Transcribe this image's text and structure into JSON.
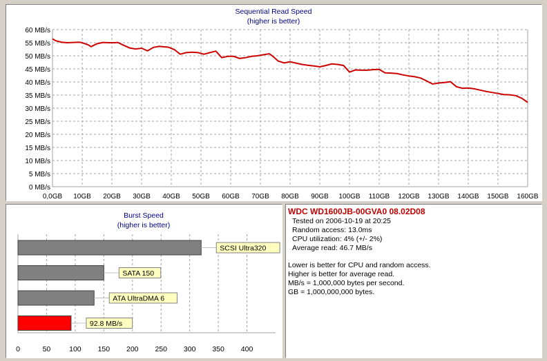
{
  "chart_data": [
    {
      "type": "line",
      "title": "Sequential Read Speed",
      "subtitle": "(higher is better)",
      "xlabel": "",
      "ylabel": "",
      "x_ticks": [
        "0,0GB",
        "10GB",
        "20GB",
        "30GB",
        "40GB",
        "50GB",
        "60GB",
        "70GB",
        "80GB",
        "90GB",
        "100GB",
        "110GB",
        "120GB",
        "130GB",
        "140GB",
        "150GB",
        "160GB"
      ],
      "y_ticks": [
        "0 MB/s",
        "5 MB/s",
        "10 MB/s",
        "15 MB/s",
        "20 MB/s",
        "25 MB/s",
        "30 MB/s",
        "35 MB/s",
        "40 MB/s",
        "45 MB/s",
        "50 MB/s",
        "55 MB/s",
        "60 MB/s"
      ],
      "xlim": [
        0,
        160
      ],
      "ylim": [
        0,
        60
      ],
      "grid": true,
      "line_color": "#cc0000",
      "series": [
        {
          "x": [
            0,
            1,
            3,
            5,
            7,
            9,
            10,
            12,
            13,
            15,
            17,
            19,
            21,
            22,
            24,
            26,
            28,
            30,
            32,
            34,
            36,
            37,
            39,
            41,
            43,
            45,
            47,
            49,
            51,
            53,
            55,
            57,
            59,
            61,
            63,
            65,
            67,
            69,
            71,
            73,
            74,
            76,
            78,
            80,
            82,
            84,
            86,
            88,
            90,
            92,
            94,
            96,
            98,
            100,
            102,
            104,
            106,
            108,
            110,
            112,
            114,
            116,
            118,
            120,
            122,
            124,
            126,
            128,
            130,
            132,
            134,
            136,
            138,
            140,
            142,
            144,
            146,
            148,
            150,
            152,
            154,
            156,
            158,
            160
          ],
          "y": [
            56.5,
            55.8,
            55.2,
            55,
            55.1,
            55.2,
            55,
            54.2,
            53.5,
            54.6,
            55.1,
            55,
            55,
            55.1,
            54,
            53,
            52.6,
            52.9,
            51.9,
            53.2,
            53.6,
            53.5,
            53.3,
            52.4,
            50.6,
            51.2,
            51.4,
            51.2,
            50.6,
            51.2,
            51.8,
            49.3,
            49.8,
            49.8,
            49,
            49.3,
            49.8,
            50,
            50.4,
            50.8,
            50,
            48,
            47.3,
            47.7,
            47.2,
            46.7,
            46.4,
            46.1,
            45.8,
            46.3,
            46.9,
            46.7,
            46.3,
            43.8,
            44.6,
            44.5,
            44.5,
            44.7,
            44.8,
            43.5,
            43.4,
            43.2,
            42.7,
            42.3,
            42,
            41.5,
            40.4,
            39.2,
            39.6,
            39.8,
            40.1,
            38.2,
            37.6,
            37.7,
            37.4,
            36.9,
            36.4,
            36,
            35.6,
            35.2,
            35.1,
            34.8,
            33.8,
            32.2
          ]
        }
      ]
    },
    {
      "type": "bar",
      "orientation": "horizontal",
      "title": "Burst Speed",
      "subtitle": "(higher is better)",
      "xlim": [
        0,
        450
      ],
      "x_ticks": [
        "0",
        "50",
        "100",
        "150",
        "200",
        "250",
        "300",
        "350",
        "400"
      ],
      "grid": true,
      "categories": [
        "SCSI Ultra320",
        "SATA 150",
        "ATA UltraDMA 6",
        "92.8 MB/s"
      ],
      "values": [
        320,
        150,
        133,
        92.8
      ],
      "bar_colors": [
        "#808080",
        "#808080",
        "#808080",
        "#ff0000"
      ]
    }
  ],
  "drive_info": {
    "model": "WDC WD1600JB-00GVA0 08.02D08",
    "tested_on": "Tested on 2006-10-19 at 20:25",
    "random_access": "Random access: 13.0ms",
    "cpu_utilization": "CPU utilization: 4% (+/- 2%)",
    "average_read": "Average read: 46.7 MB/s",
    "notes": [
      "Lower is better for CPU and random access.",
      "Higher is better for average read.",
      "MB/s = 1,000,000 bytes per second.",
      "GB = 1,000,000,000 bytes."
    ]
  }
}
